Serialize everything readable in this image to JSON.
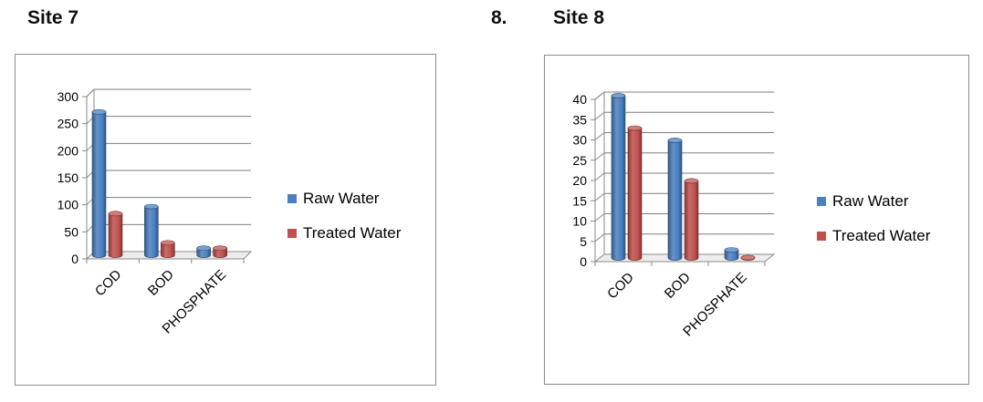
{
  "page": {
    "left_title": "Site 7",
    "right_number": "8.",
    "right_title": "Site 8"
  },
  "chart_data": [
    {
      "type": "bar",
      "title": "",
      "categories": [
        "COD",
        "BOD",
        "PHOSPHATE"
      ],
      "series": [
        {
          "name": "Raw Water",
          "values": [
            265,
            90,
            13
          ],
          "color": "#4a7fc1"
        },
        {
          "name": "Treated Water",
          "values": [
            77,
            23,
            13
          ],
          "color": "#c0504d"
        }
      ],
      "ylim": [
        0,
        300
      ],
      "yticks": [
        "300",
        "250",
        "200",
        "150",
        "100",
        "50",
        "0"
      ],
      "grid": true,
      "legend": "right",
      "xlabel": "",
      "ylabel": ""
    },
    {
      "type": "bar",
      "title": "",
      "categories": [
        "COD",
        "BOD",
        "PHOSPHATE"
      ],
      "series": [
        {
          "name": "Raw Water",
          "values": [
            40,
            29,
            2
          ],
          "color": "#4a7fc1"
        },
        {
          "name": "Treated Water",
          "values": [
            32,
            19,
            0.1
          ],
          "color": "#c0504d"
        }
      ],
      "ylim": [
        0,
        40
      ],
      "yticks": [
        "40",
        "35",
        "30",
        "25",
        "20",
        "15",
        "10",
        "5",
        "0"
      ],
      "grid": true,
      "legend": "right",
      "xlabel": "",
      "ylabel": ""
    }
  ]
}
